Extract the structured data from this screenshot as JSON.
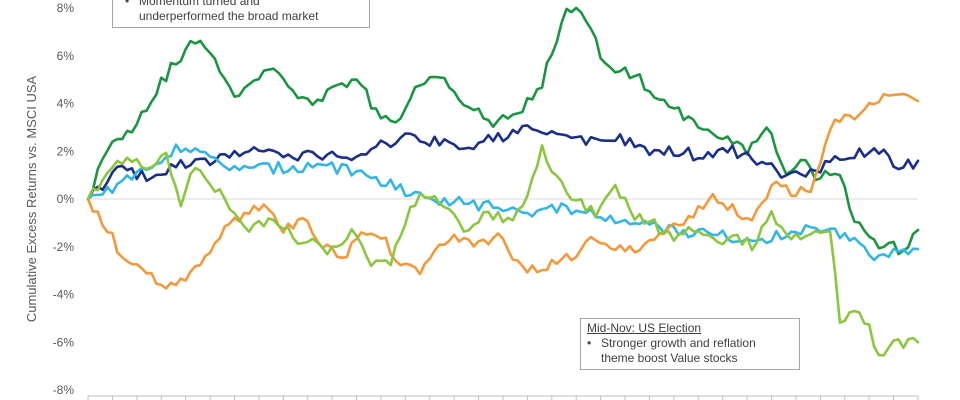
{
  "chart_data": {
    "type": "line",
    "title": "",
    "xlabel": "",
    "ylabel": "Cumulative Excess Returns vs. MSCI USA",
    "ylim": [
      -8,
      8
    ],
    "yticks": [
      8,
      6,
      4,
      2,
      0,
      -2,
      -4,
      -6,
      -8
    ],
    "ytick_labels": [
      "8%",
      "6%",
      "4%",
      "2%",
      "0%",
      "-2%",
      "-4%",
      "-6%",
      "-8%"
    ],
    "x_points": 170,
    "grid": false,
    "legend": "none",
    "series": [
      {
        "color": "#1a9641",
        "keypoints": [
          [
            0,
            0
          ],
          [
            4,
            2.2
          ],
          [
            10,
            3.2
          ],
          [
            14,
            4.6
          ],
          [
            20,
            6.3
          ],
          [
            23,
            6.6
          ],
          [
            27,
            5.5
          ],
          [
            30,
            4.4
          ],
          [
            34,
            4.9
          ],
          [
            38,
            5.7
          ],
          [
            42,
            4.5
          ],
          [
            46,
            3.8
          ],
          [
            50,
            4.6
          ],
          [
            56,
            4.9
          ],
          [
            59,
            3.6
          ],
          [
            63,
            3.0
          ],
          [
            67,
            4.6
          ],
          [
            72,
            5.2
          ],
          [
            75,
            4.6
          ],
          [
            79,
            3.7
          ],
          [
            83,
            3.1
          ],
          [
            88,
            3.6
          ],
          [
            93,
            4.9
          ],
          [
            98,
            8.0
          ],
          [
            102,
            7.6
          ],
          [
            106,
            5.6
          ],
          [
            112,
            5.2
          ],
          [
            117,
            4.1
          ],
          [
            121,
            3.6
          ],
          [
            126,
            3.1
          ],
          [
            130,
            2.6
          ],
          [
            135,
            2.0
          ],
          [
            139,
            3.1
          ],
          [
            143,
            1.2
          ],
          [
            147,
            1.6
          ],
          [
            149,
            1.0
          ],
          [
            154,
            0.9
          ],
          [
            157,
            -0.8
          ],
          [
            160,
            -1.8
          ],
          [
            164,
            -2.0
          ],
          [
            167,
            -2.1
          ],
          [
            170,
            -1.3
          ]
        ]
      },
      {
        "color": "#1a2f8a",
        "keypoints": [
          [
            0,
            0
          ],
          [
            6,
            1.2
          ],
          [
            12,
            0.9
          ],
          [
            18,
            1.4
          ],
          [
            24,
            1.5
          ],
          [
            30,
            1.9
          ],
          [
            36,
            2.1
          ],
          [
            42,
            1.8
          ],
          [
            48,
            1.9
          ],
          [
            54,
            1.7
          ],
          [
            60,
            2.2
          ],
          [
            66,
            2.6
          ],
          [
            72,
            2.4
          ],
          [
            78,
            2.2
          ],
          [
            84,
            2.6
          ],
          [
            90,
            2.9
          ],
          [
            96,
            2.7
          ],
          [
            102,
            2.4
          ],
          [
            108,
            2.6
          ],
          [
            114,
            2.0
          ],
          [
            120,
            2.0
          ],
          [
            126,
            1.8
          ],
          [
            132,
            2.0
          ],
          [
            138,
            1.4
          ],
          [
            144,
            1.0
          ],
          [
            150,
            1.3
          ],
          [
            156,
            1.8
          ],
          [
            162,
            2.0
          ],
          [
            166,
            1.3
          ],
          [
            170,
            1.6
          ]
        ]
      },
      {
        "color": "#33b5e5",
        "keypoints": [
          [
            0,
            0
          ],
          [
            6,
            0.6
          ],
          [
            12,
            1.2
          ],
          [
            18,
            2.2
          ],
          [
            24,
            1.8
          ],
          [
            30,
            1.2
          ],
          [
            36,
            1.3
          ],
          [
            42,
            1.3
          ],
          [
            48,
            1.5
          ],
          [
            54,
            1.1
          ],
          [
            60,
            0.7
          ],
          [
            66,
            0.3
          ],
          [
            72,
            0.0
          ],
          [
            78,
            -0.2
          ],
          [
            84,
            -0.3
          ],
          [
            90,
            -0.5
          ],
          [
            96,
            -0.4
          ],
          [
            102,
            -0.6
          ],
          [
            108,
            -0.9
          ],
          [
            114,
            -1.1
          ],
          [
            120,
            -1.3
          ],
          [
            126,
            -1.4
          ],
          [
            132,
            -1.6
          ],
          [
            138,
            -1.7
          ],
          [
            144,
            -1.4
          ],
          [
            150,
            -1.3
          ],
          [
            156,
            -1.5
          ],
          [
            162,
            -2.5
          ],
          [
            166,
            -2.2
          ],
          [
            170,
            -2.1
          ]
        ]
      },
      {
        "color": "#f29a3b",
        "keypoints": [
          [
            0,
            0
          ],
          [
            6,
            -2.0
          ],
          [
            12,
            -3.2
          ],
          [
            16,
            -3.6
          ],
          [
            20,
            -3.2
          ],
          [
            24,
            -2.3
          ],
          [
            28,
            -1.4
          ],
          [
            32,
            -0.6
          ],
          [
            36,
            -0.3
          ],
          [
            40,
            -1.4
          ],
          [
            44,
            -0.9
          ],
          [
            48,
            -2.0
          ],
          [
            52,
            -2.5
          ],
          [
            56,
            -1.4
          ],
          [
            60,
            -1.6
          ],
          [
            64,
            -2.6
          ],
          [
            68,
            -2.9
          ],
          [
            72,
            -2.0
          ],
          [
            76,
            -1.6
          ],
          [
            80,
            -1.9
          ],
          [
            84,
            -1.5
          ],
          [
            88,
            -2.6
          ],
          [
            92,
            -3.1
          ],
          [
            96,
            -2.6
          ],
          [
            100,
            -2.3
          ],
          [
            104,
            -1.6
          ],
          [
            108,
            -2.0
          ],
          [
            112,
            -2.3
          ],
          [
            116,
            -1.8
          ],
          [
            120,
            -1.2
          ],
          [
            124,
            -0.6
          ],
          [
            128,
            0.1
          ],
          [
            132,
            -0.4
          ],
          [
            136,
            -0.8
          ],
          [
            140,
            0.6
          ],
          [
            144,
            0.3
          ],
          [
            148,
            0.2
          ],
          [
            152,
            3.0
          ],
          [
            156,
            3.4
          ],
          [
            160,
            4.1
          ],
          [
            164,
            4.5
          ],
          [
            170,
            4.1
          ]
        ]
      },
      {
        "color": "#8cc63f",
        "keypoints": [
          [
            0,
            0
          ],
          [
            4,
            0.9
          ],
          [
            8,
            1.8
          ],
          [
            12,
            1.2
          ],
          [
            16,
            1.8
          ],
          [
            19,
            -0.3
          ],
          [
            22,
            1.4
          ],
          [
            26,
            0.5
          ],
          [
            30,
            -0.8
          ],
          [
            34,
            -1.3
          ],
          [
            38,
            -0.7
          ],
          [
            42,
            -1.6
          ],
          [
            46,
            -1.8
          ],
          [
            50,
            -2.2
          ],
          [
            54,
            -1.4
          ],
          [
            58,
            -2.8
          ],
          [
            62,
            -2.6
          ],
          [
            66,
            -0.2
          ],
          [
            70,
            0.2
          ],
          [
            74,
            -0.6
          ],
          [
            78,
            -1.3
          ],
          [
            82,
            -0.6
          ],
          [
            86,
            -1.0
          ],
          [
            90,
            0.2
          ],
          [
            93,
            2.0
          ],
          [
            96,
            1.0
          ],
          [
            100,
            -0.1
          ],
          [
            104,
            -0.5
          ],
          [
            108,
            0.6
          ],
          [
            112,
            -0.7
          ],
          [
            116,
            -1.1
          ],
          [
            120,
            -1.6
          ],
          [
            124,
            -1.3
          ],
          [
            128,
            -1.8
          ],
          [
            132,
            -1.5
          ],
          [
            136,
            -1.9
          ],
          [
            140,
            -0.6
          ],
          [
            144,
            -1.5
          ],
          [
            148,
            -1.6
          ],
          [
            152,
            -1.5
          ],
          [
            154,
            -5.0
          ],
          [
            158,
            -4.6
          ],
          [
            162,
            -6.4
          ],
          [
            166,
            -6.0
          ],
          [
            170,
            -6.0
          ]
        ]
      }
    ]
  },
  "annotations": {
    "top": {
      "lines": [
        "Momentum turned and",
        "underperformed the broad market"
      ],
      "bullet": "•"
    },
    "bottom": {
      "title": "Mid-Nov: US Election",
      "bullet": "•",
      "lines": [
        "Stronger growth and reflation",
        "theme boost Value stocks"
      ]
    }
  }
}
